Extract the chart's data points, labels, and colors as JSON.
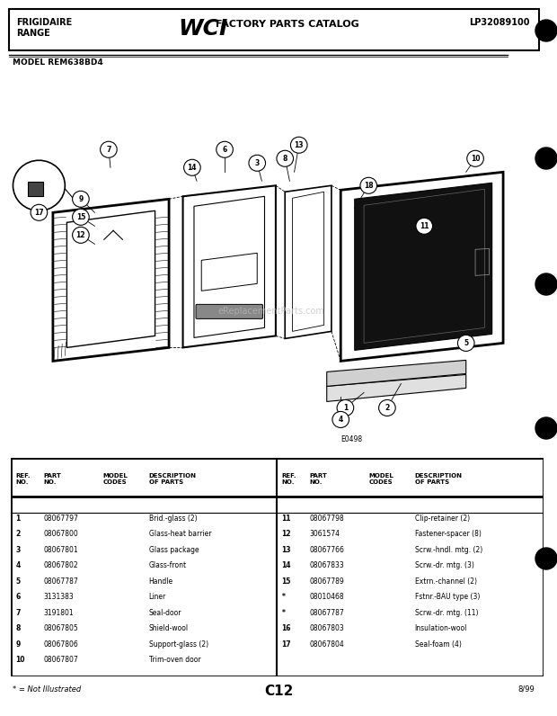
{
  "title_left1": "FRIGIDAIRE",
  "title_left2": "RANGE",
  "title_wci": "WCI",
  "title_catalog": "FACTORY PARTS CATALOG",
  "title_right": "LP32089100",
  "model": "MODEL REM638BD4",
  "diagram_code": "E0498",
  "page_code": "C12",
  "date": "8/99",
  "footnote": "* = Not Illustrated",
  "watermark": "eReplacementParts.com",
  "bg_color": "#e8e8e8",
  "parts_left": [
    {
      "ref": "1",
      "part": "08067797",
      "model_codes": "",
      "desc": "Brid.-glass (2)"
    },
    {
      "ref": "2",
      "part": "08067800",
      "model_codes": "",
      "desc": "Glass-heat barrier"
    },
    {
      "ref": "3",
      "part": "08067801",
      "model_codes": "",
      "desc": "Glass package"
    },
    {
      "ref": "4",
      "part": "08067802",
      "model_codes": "",
      "desc": "Glass-front"
    },
    {
      "ref": "5",
      "part": "08067787",
      "model_codes": "",
      "desc": "Handle"
    },
    {
      "ref": "6",
      "part": "3131383",
      "model_codes": "",
      "desc": "Liner"
    },
    {
      "ref": "7",
      "part": "3191801",
      "model_codes": "",
      "desc": "Seal-door"
    },
    {
      "ref": "8",
      "part": "08067805",
      "model_codes": "",
      "desc": "Shield-wool"
    },
    {
      "ref": "9",
      "part": "08067806",
      "model_codes": "",
      "desc": "Support-glass (2)"
    },
    {
      "ref": "10",
      "part": "08067807",
      "model_codes": "",
      "desc": "Trim-oven door"
    }
  ],
  "parts_right": [
    {
      "ref": "11",
      "part": "08067798",
      "model_codes": "",
      "desc": "Clip-retainer (2)"
    },
    {
      "ref": "12",
      "part": "3061574",
      "model_codes": "",
      "desc": "Fastener-spacer (8)"
    },
    {
      "ref": "13",
      "part": "08067766",
      "model_codes": "",
      "desc": "Scrw.-hndl. mtg. (2)"
    },
    {
      "ref": "14",
      "part": "08067833",
      "model_codes": "",
      "desc": "Scrw.-dr. mtg. (3)"
    },
    {
      "ref": "15",
      "part": "08067789",
      "model_codes": "",
      "desc": "Extrn.-channel (2)"
    },
    {
      "ref": "*",
      "part": "08010468",
      "model_codes": "",
      "desc": "Fstnr.-BAU type (3)"
    },
    {
      "ref": "*",
      "part": "08067787",
      "model_codes": "",
      "desc": "Scrw.-dr. mtg. (11)"
    },
    {
      "ref": "16",
      "part": "08067803",
      "model_codes": "",
      "desc": "Insulation-wool"
    },
    {
      "ref": "17",
      "part": "08067804",
      "model_codes": "",
      "desc": "Seal-foam (4)"
    }
  ]
}
